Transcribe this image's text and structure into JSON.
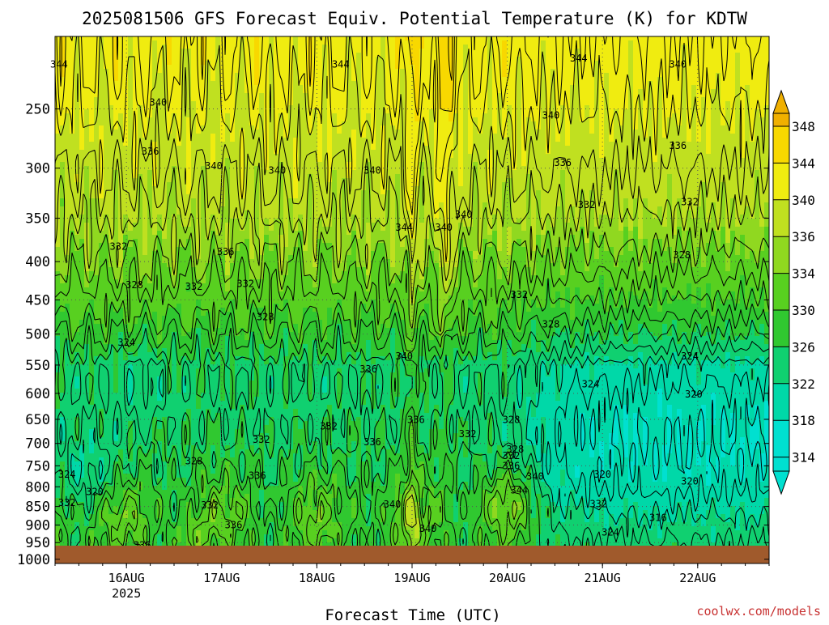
{
  "chart_data": {
    "type": "heatmap",
    "title": "2025081506 GFS Forecast Equiv. Potential Temperature (K) for KDTW",
    "xlabel": "Forecast Time (UTC)",
    "ylabel": "",
    "credit": "coolwx.com/models",
    "y_axis": {
      "ticks": [
        250,
        300,
        350,
        400,
        450,
        500,
        550,
        600,
        650,
        700,
        750,
        800,
        850,
        900,
        950,
        1000
      ],
      "range": [
        200,
        1013
      ]
    },
    "x_axis": {
      "ticks": [
        {
          "label": "16AUG",
          "sub": "2025",
          "t": 18
        },
        {
          "label": "17AUG",
          "sub": "",
          "t": 42
        },
        {
          "label": "18AUG",
          "sub": "",
          "t": 66
        },
        {
          "label": "19AUG",
          "sub": "",
          "t": 90
        },
        {
          "label": "20AUG",
          "sub": "",
          "t": 114
        },
        {
          "label": "21AUG",
          "sub": "",
          "t": 138
        },
        {
          "label": "22AUG",
          "sub": "",
          "t": 162
        }
      ],
      "range_hours": [
        0,
        180
      ]
    },
    "colorbar": {
      "levels": [
        314,
        318,
        322,
        326,
        330,
        334,
        336,
        340,
        344,
        348
      ],
      "colors": [
        "#00e0d0",
        "#00d8a8",
        "#10d070",
        "#30c830",
        "#58d020",
        "#90d820",
        "#c0e020",
        "#f0ec10",
        "#f8d800",
        "#f0b000"
      ]
    },
    "ground_color": "#a05a2c",
    "contour_labels": [
      {
        "v": "344",
        "t": 1,
        "p": 218
      },
      {
        "v": "344",
        "t": 72,
        "p": 218
      },
      {
        "v": "344",
        "t": 132,
        "p": 214
      },
      {
        "v": "340",
        "t": 157,
        "p": 218
      },
      {
        "v": "340",
        "t": 26,
        "p": 245
      },
      {
        "v": "340",
        "t": 125,
        "p": 255
      },
      {
        "v": "336",
        "t": 24,
        "p": 285
      },
      {
        "v": "336",
        "t": 157,
        "p": 280
      },
      {
        "v": "336",
        "t": 128,
        "p": 295
      },
      {
        "v": "340",
        "t": 40,
        "p": 298
      },
      {
        "v": "340",
        "t": 56,
        "p": 302
      },
      {
        "v": "340",
        "t": 80,
        "p": 302
      },
      {
        "v": "332",
        "t": 134,
        "p": 336
      },
      {
        "v": "332",
        "t": 160,
        "p": 333
      },
      {
        "v": "340",
        "t": 103,
        "p": 346
      },
      {
        "v": "344",
        "t": 88,
        "p": 360
      },
      {
        "v": "340",
        "t": 98,
        "p": 360
      },
      {
        "v": "332",
        "t": 16,
        "p": 382
      },
      {
        "v": "336",
        "t": 43,
        "p": 388
      },
      {
        "v": "328",
        "t": 158,
        "p": 392
      },
      {
        "v": "328",
        "t": 20,
        "p": 430
      },
      {
        "v": "332",
        "t": 35,
        "p": 432
      },
      {
        "v": "332",
        "t": 48,
        "p": 428
      },
      {
        "v": "332",
        "t": 117,
        "p": 443
      },
      {
        "v": "328",
        "t": 53,
        "p": 474
      },
      {
        "v": "328",
        "t": 125,
        "p": 485
      },
      {
        "v": "324",
        "t": 18,
        "p": 513
      },
      {
        "v": "324",
        "t": 160,
        "p": 535
      },
      {
        "v": "340",
        "t": 88,
        "p": 535
      },
      {
        "v": "336",
        "t": 79,
        "p": 557
      },
      {
        "v": "324",
        "t": 135,
        "p": 583
      },
      {
        "v": "320",
        "t": 161,
        "p": 602
      },
      {
        "v": "336",
        "t": 91,
        "p": 651
      },
      {
        "v": "328",
        "t": 115,
        "p": 651
      },
      {
        "v": "332",
        "t": 69,
        "p": 664
      },
      {
        "v": "332",
        "t": 104,
        "p": 680
      },
      {
        "v": "332",
        "t": 52,
        "p": 692
      },
      {
        "v": "336",
        "t": 80,
        "p": 697
      },
      {
        "v": "328",
        "t": 116,
        "p": 713
      },
      {
        "v": "332",
        "t": 115,
        "p": 727
      },
      {
        "v": "328",
        "t": 35,
        "p": 739
      },
      {
        "v": "336",
        "t": 115,
        "p": 750
      },
      {
        "v": "324",
        "t": 3,
        "p": 770
      },
      {
        "v": "320",
        "t": 138,
        "p": 770
      },
      {
        "v": "336",
        "t": 51,
        "p": 773
      },
      {
        "v": "340",
        "t": 121,
        "p": 775
      },
      {
        "v": "320",
        "t": 160,
        "p": 787
      },
      {
        "v": "320",
        "t": 10,
        "p": 812
      },
      {
        "v": "344",
        "t": 117,
        "p": 808
      },
      {
        "v": "332",
        "t": 3,
        "p": 840
      },
      {
        "v": "332",
        "t": 39,
        "p": 847
      },
      {
        "v": "340",
        "t": 85,
        "p": 845
      },
      {
        "v": "332",
        "t": 137,
        "p": 843
      },
      {
        "v": "316",
        "t": 152,
        "p": 880
      },
      {
        "v": "336",
        "t": 45,
        "p": 900
      },
      {
        "v": "340",
        "t": 94,
        "p": 910
      },
      {
        "v": "324",
        "t": 140,
        "p": 920
      },
      {
        "v": "336",
        "t": 22,
        "p": 958
      },
      {
        "v": "336",
        "t": 104,
        "p": 978
      }
    ]
  }
}
